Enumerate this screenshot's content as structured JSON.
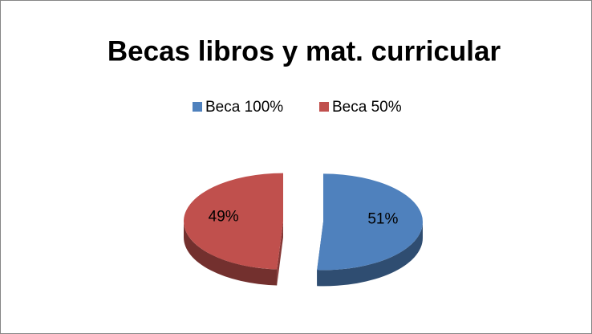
{
  "chart_data": {
    "type": "pie",
    "title": "Becas libros y mat. curricular",
    "categories": [
      "Beca 100%",
      "Beca 50%"
    ],
    "values": [
      51,
      49
    ],
    "value_labels": [
      "51%",
      "49%"
    ],
    "colors": [
      "#4f81bd",
      "#c0504d"
    ],
    "legend": "top"
  }
}
